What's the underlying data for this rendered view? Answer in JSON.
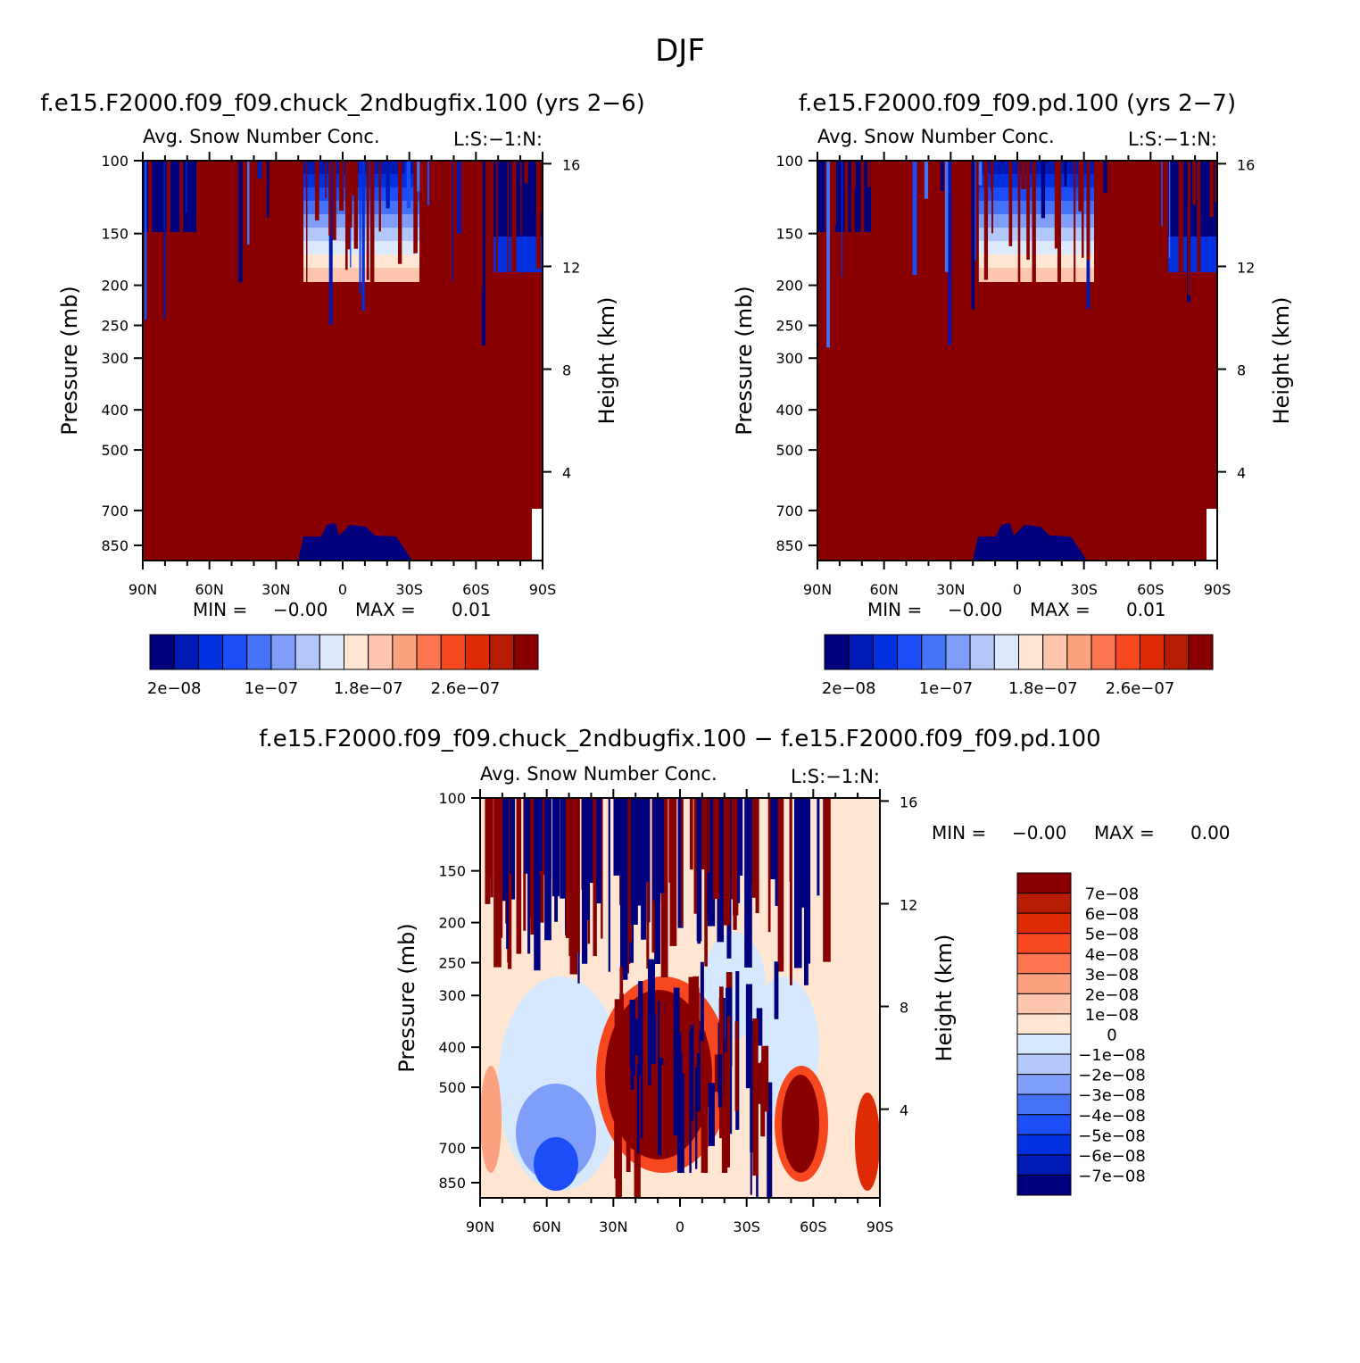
{
  "figure": {
    "season_title": "DJF",
    "colors": {
      "seq_palette": [
        "#00007f",
        "#0018b4",
        "#0030e0",
        "#1c4df6",
        "#4672f8",
        "#7e9ef9",
        "#b2c7fa",
        "#dce9fd",
        "#fee6d2",
        "#fdc6ad",
        "#fca281",
        "#fb7551",
        "#f7471f",
        "#de2b06",
        "#b61b03",
        "#880000"
      ],
      "diff_palette": [
        "#00007f",
        "#0018b4",
        "#0030e0",
        "#1c4df6",
        "#4672f8",
        "#7e9ef9",
        "#b2c7fa",
        "#d6e8fd",
        "#fee6d2",
        "#fdc6ad",
        "#fca281",
        "#fb7551",
        "#f7471f",
        "#de2b06",
        "#b61b03",
        "#880000"
      ]
    }
  },
  "chart_data": [
    {
      "id": "panel_case1",
      "type": "heatmap",
      "title": "f.e15.F2000.f09_f09.chuck_2ndbugfix.100 (yrs 2−6)",
      "subtitle_left": "Avg. Snow Number Conc.",
      "subtitle_right": "L:S:−1:N:",
      "xlabel": "",
      "ylabel": "Pressure (mb)",
      "ylabel_right": "Height (km)",
      "x_ticks": [
        "90N",
        "60N",
        "30N",
        "0",
        "30S",
        "60S",
        "90S"
      ],
      "x_tick_values": [
        90,
        60,
        30,
        0,
        -30,
        -60,
        -90
      ],
      "xlim": [
        90,
        -90
      ],
      "y_ticks": [
        "100",
        "150",
        "200",
        "250",
        "300",
        "400",
        "500",
        "700",
        "850"
      ],
      "y_tick_values": [
        100,
        150,
        200,
        250,
        300,
        400,
        500,
        700,
        850
      ],
      "ylim": [
        100,
        925
      ],
      "y_scale": "log",
      "right_ticks": [
        "16",
        "12",
        "8",
        "4"
      ],
      "right_tick_values": [
        16,
        12,
        8,
        4
      ],
      "min_label": "MIN =",
      "min_value": "−0.00",
      "max_label": "MAX =",
      "max_value": "0.01",
      "colorbar_labels": [
        "2e−08",
        "1e−07",
        "1.8e−07",
        "2.6e−07"
      ],
      "colorbar_orientation": "horizontal"
    },
    {
      "id": "panel_case2",
      "type": "heatmap",
      "title": "f.e15.F2000.f09_f09.pd.100 (yrs 2−7)",
      "subtitle_left": "Avg. Snow Number Conc.",
      "subtitle_right": "L:S:−1:N:",
      "xlabel": "",
      "ylabel": "Pressure (mb)",
      "ylabel_right": "Height (km)",
      "x_ticks": [
        "90N",
        "60N",
        "30N",
        "0",
        "30S",
        "60S",
        "90S"
      ],
      "x_tick_values": [
        90,
        60,
        30,
        0,
        -30,
        -60,
        -90
      ],
      "xlim": [
        90,
        -90
      ],
      "y_ticks": [
        "100",
        "150",
        "200",
        "250",
        "300",
        "400",
        "500",
        "700",
        "850"
      ],
      "y_tick_values": [
        100,
        150,
        200,
        250,
        300,
        400,
        500,
        700,
        850
      ],
      "ylim": [
        100,
        925
      ],
      "y_scale": "log",
      "right_ticks": [
        "16",
        "12",
        "8",
        "4"
      ],
      "right_tick_values": [
        16,
        12,
        8,
        4
      ],
      "min_label": "MIN =",
      "min_value": "−0.00",
      "max_label": "MAX =",
      "max_value": "0.01",
      "colorbar_labels": [
        "2e−08",
        "1e−07",
        "1.8e−07",
        "2.6e−07"
      ],
      "colorbar_orientation": "horizontal"
    },
    {
      "id": "panel_diff",
      "type": "heatmap",
      "title": "f.e15.F2000.f09_f09.chuck_2ndbugfix.100 − f.e15.F2000.f09_f09.pd.100",
      "subtitle_left": "Avg. Snow Number Conc.",
      "subtitle_right": "L:S:−1:N:",
      "xlabel": "",
      "ylabel": "Pressure (mb)",
      "ylabel_right": "Height (km)",
      "x_ticks": [
        "90N",
        "60N",
        "30N",
        "0",
        "30S",
        "60S",
        "90S"
      ],
      "x_tick_values": [
        90,
        60,
        30,
        0,
        -30,
        -60,
        -90
      ],
      "xlim": [
        90,
        -90
      ],
      "y_ticks": [
        "100",
        "150",
        "200",
        "250",
        "300",
        "400",
        "500",
        "700",
        "850"
      ],
      "y_tick_values": [
        100,
        150,
        200,
        250,
        300,
        400,
        500,
        700,
        850
      ],
      "ylim": [
        100,
        925
      ],
      "y_scale": "log",
      "right_ticks": [
        "16",
        "12",
        "8",
        "4"
      ],
      "right_tick_values": [
        16,
        12,
        8,
        4
      ],
      "min_label": "MIN =",
      "min_value": "−0.00",
      "max_label": "MAX =",
      "max_value": "0.00",
      "colorbar_labels": [
        "7e−08",
        "6e−08",
        "5e−08",
        "4e−08",
        "3e−08",
        "2e−08",
        "1e−08",
        "0",
        "−1e−08",
        "−2e−08",
        "−3e−08",
        "−4e−08",
        "−5e−08",
        "−6e−08",
        "−7e−08"
      ],
      "colorbar_orientation": "vertical"
    }
  ]
}
